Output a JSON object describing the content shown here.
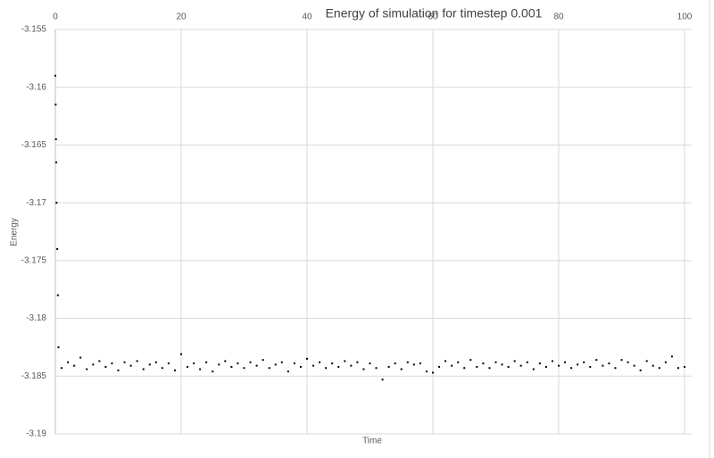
{
  "chart_data": {
    "type": "scatter",
    "title": "Energy of simulation for timestep 0.001",
    "x_label": "Time",
    "y_label": "Energy",
    "xlim": [
      0,
      100
    ],
    "xticks": [
      0,
      20,
      40,
      60,
      80,
      100
    ],
    "ylim": [
      -3.19,
      -3.155
    ],
    "yticks": [
      -3.155,
      -3.16,
      -3.165,
      -3.17,
      -3.175,
      -3.18,
      -3.185,
      -3.19
    ],
    "grid": true,
    "series": [
      {
        "color": "#000000",
        "x": [
          0,
          0.05,
          0.1,
          0.15,
          0.2,
          0.3,
          0.4,
          0.5,
          1,
          2,
          3,
          4,
          5,
          6,
          7,
          8,
          9,
          10,
          11,
          12,
          13,
          14,
          15,
          16,
          17,
          18,
          19,
          20,
          21,
          22,
          23,
          24,
          25,
          26,
          27,
          28,
          29,
          30,
          31,
          32,
          33,
          34,
          35,
          36,
          37,
          38,
          39,
          40,
          41,
          42,
          43,
          44,
          45,
          46,
          47,
          48,
          49,
          50,
          51,
          52,
          53,
          54,
          55,
          56,
          57,
          58,
          59,
          60,
          61,
          62,
          63,
          64,
          65,
          66,
          67,
          68,
          69,
          70,
          71,
          72,
          73,
          74,
          75,
          76,
          77,
          78,
          79,
          80,
          81,
          82,
          83,
          84,
          85,
          86,
          87,
          88,
          89,
          90,
          91,
          92,
          93,
          94,
          95,
          96,
          97,
          98,
          99,
          100
        ],
        "values": [
          -3.159,
          -3.1615,
          -3.1645,
          -3.1665,
          -3.17,
          -3.174,
          -3.178,
          -3.1825,
          -3.1843,
          -3.1838,
          -3.1841,
          -3.1834,
          -3.1844,
          -3.184,
          -3.1837,
          -3.1842,
          -3.1839,
          -3.1845,
          -3.1838,
          -3.1841,
          -3.1837,
          -3.1844,
          -3.184,
          -3.1838,
          -3.1843,
          -3.1839,
          -3.1845,
          -3.1831,
          -3.1842,
          -3.1839,
          -3.1844,
          -3.1838,
          -3.1846,
          -3.184,
          -3.1837,
          -3.1842,
          -3.1839,
          -3.1843,
          -3.1838,
          -3.1841,
          -3.1836,
          -3.1843,
          -3.184,
          -3.1838,
          -3.1846,
          -3.1839,
          -3.1842,
          -3.1835,
          -3.1841,
          -3.1838,
          -3.1843,
          -3.1839,
          -3.1842,
          -3.1837,
          -3.1841,
          -3.1838,
          -3.1844,
          -3.1839,
          -3.1843,
          -3.1853,
          -3.1842,
          -3.1839,
          -3.1844,
          -3.1838,
          -3.184,
          -3.1839,
          -3.1846,
          -3.1847,
          -3.1842,
          -3.1837,
          -3.1841,
          -3.1838,
          -3.1843,
          -3.1836,
          -3.1842,
          -3.1839,
          -3.1843,
          -3.1838,
          -3.184,
          -3.1842,
          -3.1837,
          -3.1841,
          -3.1838,
          -3.1844,
          -3.1839,
          -3.1842,
          -3.1837,
          -3.1841,
          -3.1838,
          -3.1843,
          -3.184,
          -3.1838,
          -3.1842,
          -3.1836,
          -3.1841,
          -3.1839,
          -3.1843,
          -3.1836,
          -3.1838,
          -3.1841,
          -3.1845,
          -3.1837,
          -3.1841,
          -3.1843,
          -3.1838,
          -3.1833,
          -3.1843,
          -3.1842
        ]
      }
    ]
  }
}
